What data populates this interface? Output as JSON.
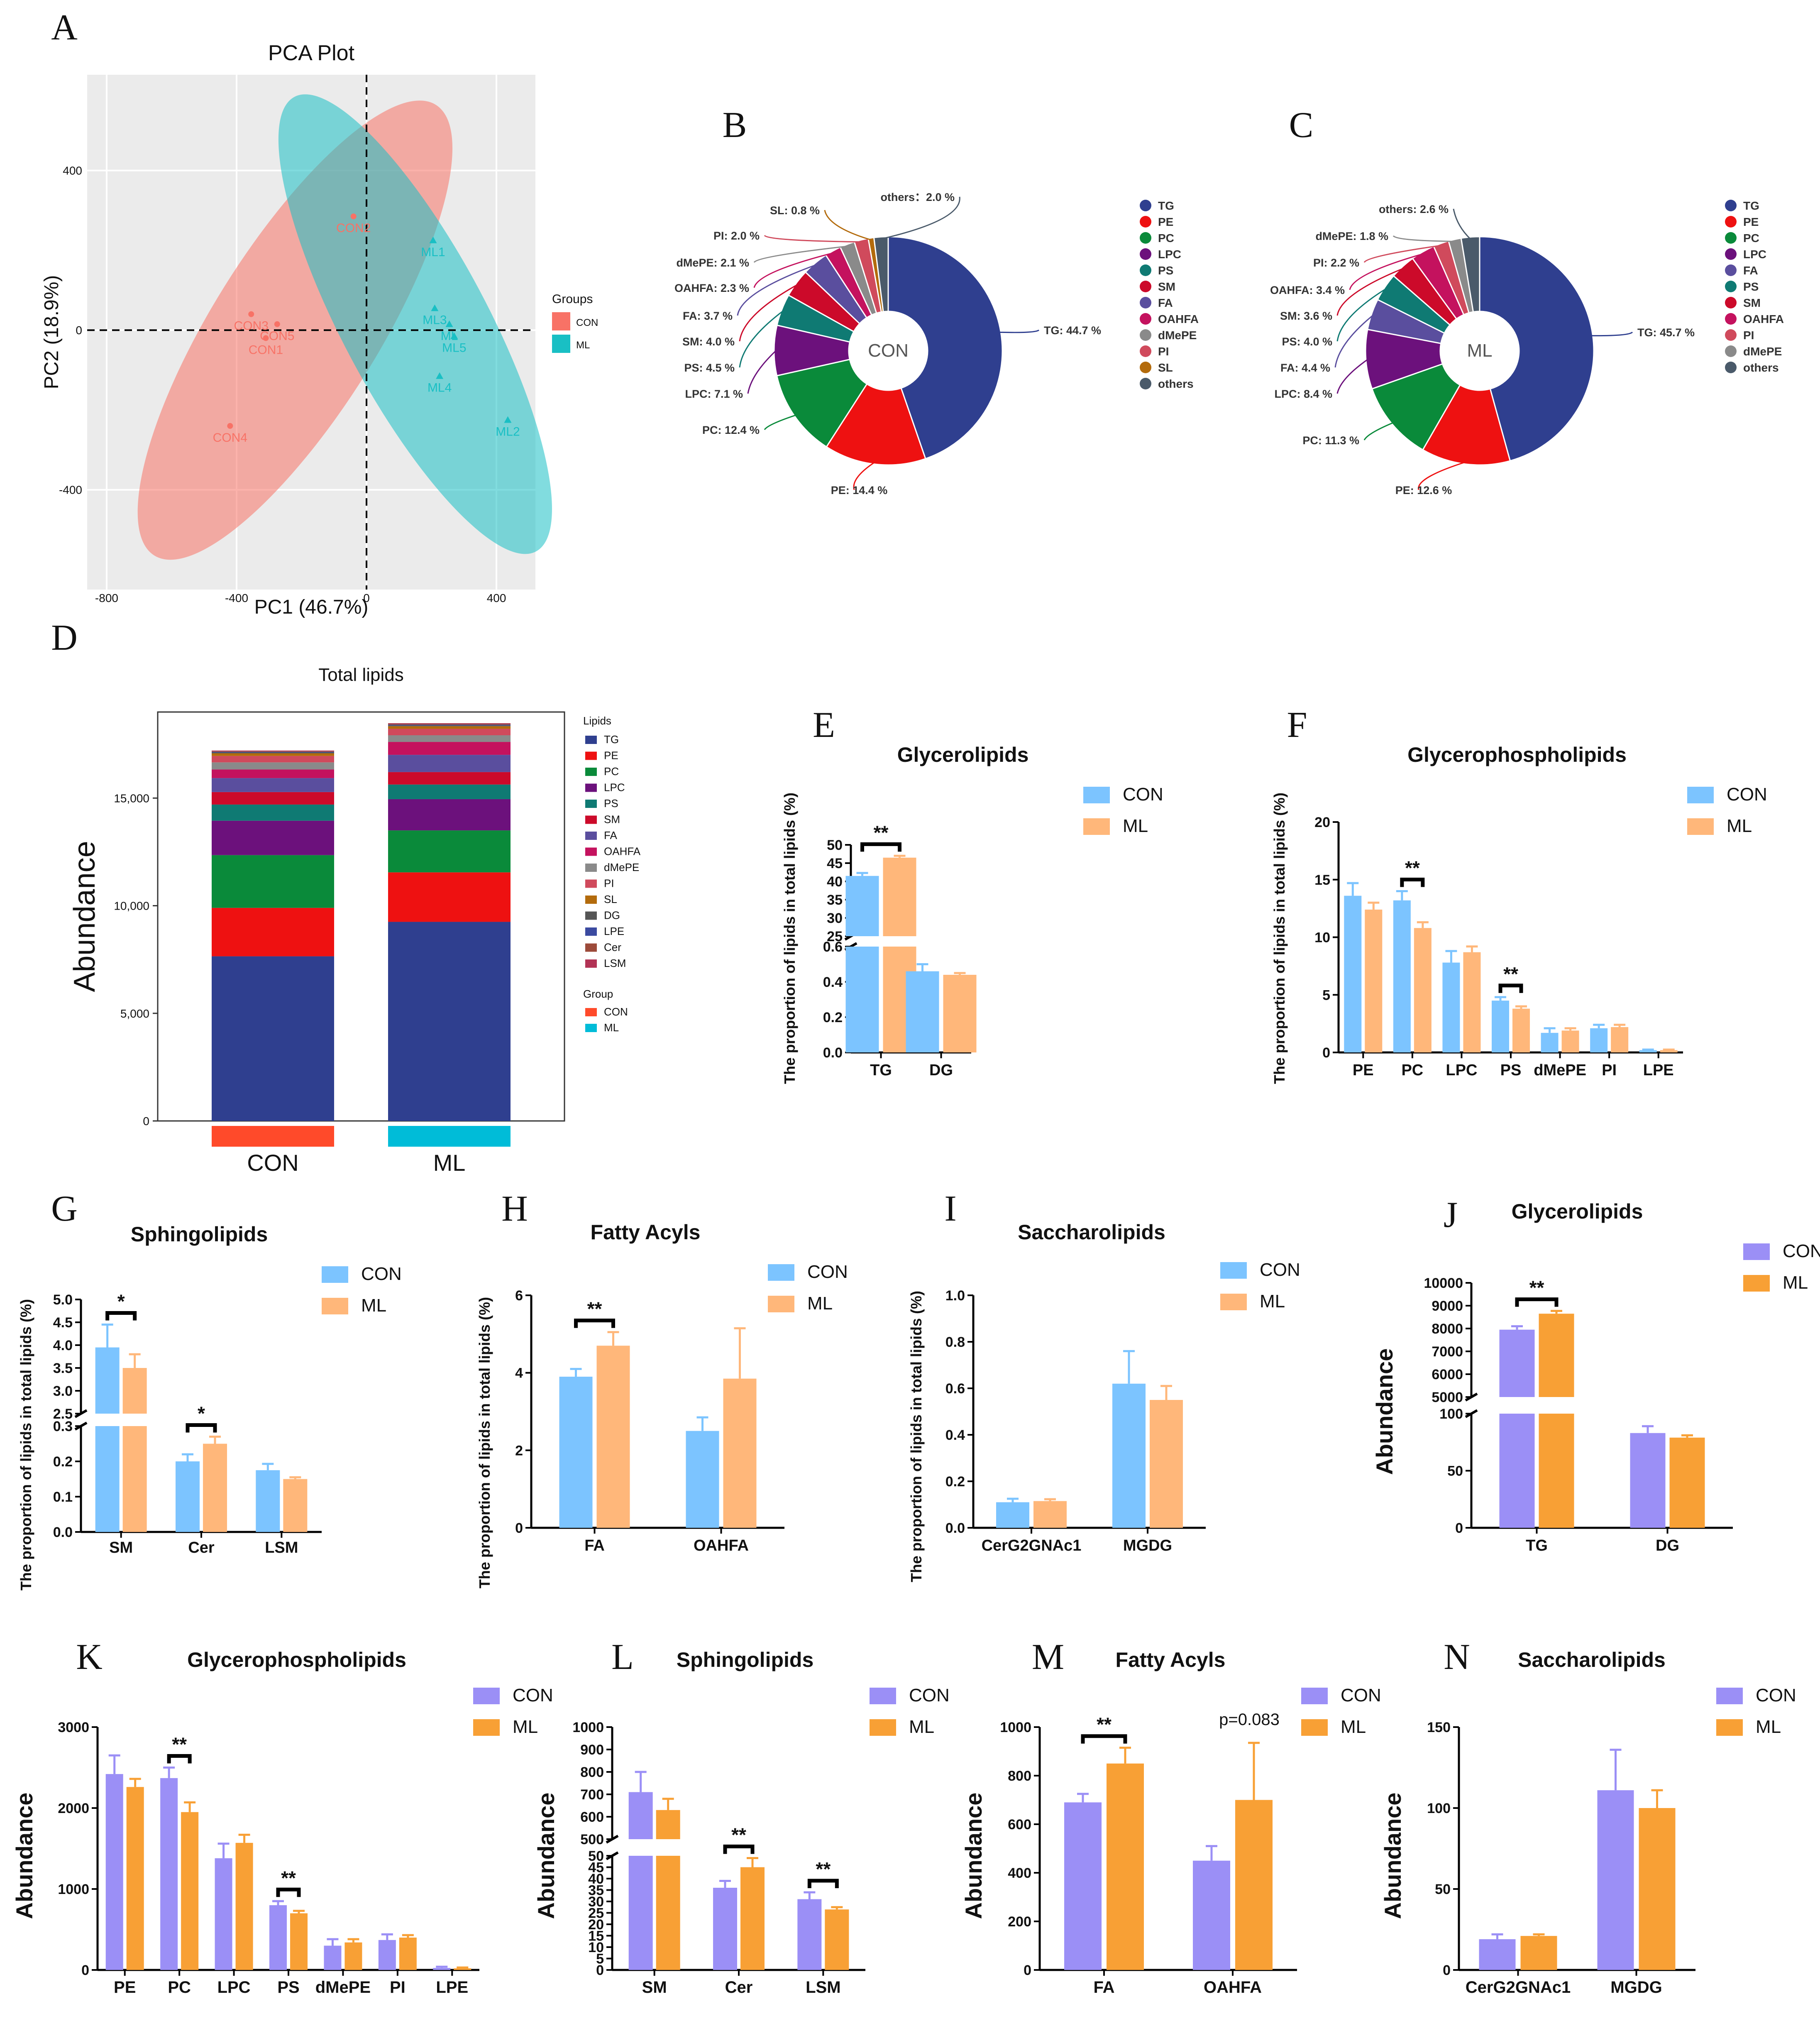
{
  "panel_letters": [
    "A",
    "B",
    "C",
    "D",
    "E",
    "F",
    "G",
    "H",
    "I",
    "J",
    "K",
    "L",
    "M",
    "N"
  ],
  "colors": {
    "con_lightbar": "#7cc4ff",
    "ml_lightbar": "#ffb77a",
    "con_abund": "#9b8ff6",
    "ml_abund": "#f8a035",
    "pca_con": "#f87266",
    "pca_ml": "#19bfc4",
    "TG": "#2f3f8f",
    "PE": "#ee1111",
    "PC": "#0a8a3a",
    "LPC": "#6c117c",
    "PS": "#0f7a73",
    "SM": "#cc0a2a",
    "FA": "#5a4e9e",
    "OAHFA": "#c4125e",
    "dMePE": "#8a8a8a",
    "PI": "#d04a5c",
    "SL": "#b36b0c",
    "DG": "#555555",
    "LPE": "#3b4aa0",
    "Cer": "#9c4a3a",
    "LSM": "#b23355",
    "others": "#4a5a6a"
  },
  "chart_data": [
    {
      "id": "A",
      "type": "scatter",
      "title": "PCA Plot",
      "xlabel": "PC1 (46.7%)",
      "ylabel": "PC2 (18.9%)",
      "xlim": [
        -860,
        520
      ],
      "ylim": [
        -650,
        640
      ],
      "xticks": [
        "-800",
        "-400",
        "0",
        "400"
      ],
      "yticks": [
        "400",
        "0",
        "-400"
      ],
      "legend_title": "Groups",
      "legend": [
        "CON",
        "ML"
      ],
      "points": [
        {
          "label": "CON1",
          "group": "CON",
          "x": -310,
          "y": -20
        },
        {
          "label": "CON2",
          "group": "CON",
          "x": -40,
          "y": 285
        },
        {
          "label": "CON3",
          "group": "CON",
          "x": -355,
          "y": 40
        },
        {
          "label": "CON4",
          "group": "CON",
          "x": -420,
          "y": -240
        },
        {
          "label": "CON5",
          "group": "CON",
          "x": -275,
          "y": 15
        },
        {
          "label": "ML1",
          "group": "ML",
          "x": 205,
          "y": 225
        },
        {
          "label": "ML2",
          "group": "ML",
          "x": 435,
          "y": -225
        },
        {
          "label": "ML3",
          "group": "ML",
          "x": 210,
          "y": 55
        },
        {
          "label": "ML4",
          "group": "ML",
          "x": 225,
          "y": -115
        },
        {
          "label": "ML5",
          "group": "ML",
          "x": 270,
          "y": -15
        },
        {
          "label": "ML",
          "group": "ML",
          "x": 255,
          "y": 15
        }
      ]
    },
    {
      "id": "B",
      "type": "pie",
      "center_label": "CON",
      "legend_title": "",
      "slices": [
        {
          "name": "TG",
          "value": 44.7,
          "label": "TG: 44.7 %"
        },
        {
          "name": "PE",
          "value": 14.4,
          "label": "PE: 14.4 %"
        },
        {
          "name": "PC",
          "value": 12.4,
          "label": "PC: 12.4 %"
        },
        {
          "name": "LPC",
          "value": 7.1,
          "label": "LPC: 7.1 %"
        },
        {
          "name": "PS",
          "value": 4.5,
          "label": "PS: 4.5 %"
        },
        {
          "name": "SM",
          "value": 4.0,
          "label": "SM: 4.0 %"
        },
        {
          "name": "FA",
          "value": 3.7,
          "label": "FA: 3.7 %"
        },
        {
          "name": "OAHFA",
          "value": 2.3,
          "label": "OAHFA: 2.3 %"
        },
        {
          "name": "dMePE",
          "value": 2.1,
          "label": "dMePE: 2.1 %"
        },
        {
          "name": "PI",
          "value": 2.0,
          "label": "PI: 2.0 %"
        },
        {
          "name": "SL",
          "value": 0.8,
          "label": "SL: 0.8 %"
        },
        {
          "name": "others",
          "value": 2.0,
          "label": "others：2.0 %"
        }
      ]
    },
    {
      "id": "C",
      "type": "pie",
      "center_label": "ML",
      "slices": [
        {
          "name": "TG",
          "value": 45.7,
          "label": "TG: 45.7 %"
        },
        {
          "name": "PE",
          "value": 12.6,
          "label": "PE: 12.6 %"
        },
        {
          "name": "PC",
          "value": 11.3,
          "label": "PC: 11.3 %"
        },
        {
          "name": "LPC",
          "value": 8.4,
          "label": "LPC: 8.4 %"
        },
        {
          "name": "FA",
          "value": 4.4,
          "label": "FA: 4.4 %"
        },
        {
          "name": "PS",
          "value": 4.0,
          "label": "PS: 4.0 %"
        },
        {
          "name": "SM",
          "value": 3.6,
          "label": "SM: 3.6 %"
        },
        {
          "name": "OAHFA",
          "value": 3.4,
          "label": "OAHFA: 3.4 %"
        },
        {
          "name": "PI",
          "value": 2.2,
          "label": "PI: 2.2 %"
        },
        {
          "name": "dMePE",
          "value": 1.8,
          "label": "dMePE: 1.8 %"
        },
        {
          "name": "others",
          "value": 2.6,
          "label": "others: 2.6 %"
        }
      ]
    },
    {
      "id": "D",
      "type": "bar",
      "stacked": true,
      "title": "Total lipids",
      "ylabel": "Abundance",
      "ylim": [
        0,
        19000
      ],
      "yticks": [
        "0",
        "5,000",
        "10,000",
        "15,000"
      ],
      "categories": [
        "CON",
        "ML"
      ],
      "legend_title": "Lipids",
      "group_legend_title": "Group",
      "group_legend": [
        "CON",
        "ML"
      ],
      "series": [
        {
          "name": "TG",
          "values": [
            7650,
            9250
          ]
        },
        {
          "name": "PE",
          "values": [
            2250,
            2300
          ]
        },
        {
          "name": "PC",
          "values": [
            2450,
            1950
          ]
        },
        {
          "name": "LPC",
          "values": [
            1600,
            1450
          ]
        },
        {
          "name": "PS",
          "values": [
            750,
            680
          ]
        },
        {
          "name": "SM",
          "values": [
            580,
            580
          ]
        },
        {
          "name": "FA",
          "values": [
            650,
            800
          ]
        },
        {
          "name": "OAHFA",
          "values": [
            400,
            600
          ]
        },
        {
          "name": "dMePE",
          "values": [
            330,
            310
          ]
        },
        {
          "name": "PI",
          "values": [
            300,
            300
          ]
        },
        {
          "name": "SL",
          "values": [
            120,
            120
          ]
        },
        {
          "name": "DG",
          "values": [
            40,
            40
          ]
        },
        {
          "name": "LPE",
          "values": [
            30,
            30
          ]
        },
        {
          "name": "Cer",
          "values": [
            30,
            40
          ]
        },
        {
          "name": "LSM",
          "values": [
            30,
            30
          ]
        }
      ]
    },
    {
      "id": "E",
      "type": "bar",
      "title": "Glycerolipids",
      "ylabel": "The proportion of lipids in total lipids (%)",
      "categories": [
        "TG",
        "DG"
      ],
      "legend": [
        "CON",
        "ML"
      ],
      "series": [
        {
          "name": "CON",
          "values": [
            41.5,
            0.46
          ],
          "errors": [
            0.8,
            0.04
          ]
        },
        {
          "name": "ML",
          "values": [
            46.5,
            0.44
          ],
          "errors": [
            0.5,
            0.01
          ]
        }
      ],
      "broken_axis": {
        "lower": [
          0,
          0.6
        ],
        "upper": [
          25,
          50
        ]
      },
      "yticks_lower": [
        "0.0",
        "0.2",
        "0.4",
        "0.6"
      ],
      "yticks_upper": [
        "25",
        "30",
        "35",
        "40",
        "45",
        "50"
      ],
      "annotations": [
        {
          "text": "**",
          "category": "TG"
        }
      ]
    },
    {
      "id": "F",
      "type": "bar",
      "title": "Glycerophospholipids",
      "ylabel": "The proportion of lipids in total lipids (%)",
      "categories": [
        "PE",
        "PC",
        "LPC",
        "PS",
        "dMePE",
        "PI",
        "LPE"
      ],
      "legend": [
        "CON",
        "ML"
      ],
      "ylim": [
        0,
        20
      ],
      "yticks": [
        "0",
        "5",
        "10",
        "15",
        "20"
      ],
      "series": [
        {
          "name": "CON",
          "values": [
            13.6,
            13.2,
            7.8,
            4.5,
            1.7,
            2.1,
            0.2
          ],
          "errors": [
            1.1,
            0.8,
            1.0,
            0.3,
            0.4,
            0.3,
            0.05
          ]
        },
        {
          "name": "ML",
          "values": [
            12.4,
            10.8,
            8.7,
            3.8,
            1.9,
            2.2,
            0.2
          ],
          "errors": [
            0.6,
            0.5,
            0.5,
            0.2,
            0.2,
            0.2,
            0.05
          ]
        }
      ],
      "annotations": [
        {
          "text": "**",
          "category": "PC"
        },
        {
          "text": "**",
          "category": "PS"
        }
      ]
    },
    {
      "id": "G",
      "type": "bar",
      "title": "Sphingolipids",
      "ylabel": "The proportion of lipids in total lipids (%)",
      "categories": [
        "SM",
        "Cer",
        "LSM"
      ],
      "legend": [
        "CON",
        "ML"
      ],
      "series": [
        {
          "name": "CON",
          "values": [
            3.95,
            0.2,
            0.175
          ],
          "errors": [
            0.5,
            0.02,
            0.018
          ]
        },
        {
          "name": "ML",
          "values": [
            3.5,
            0.25,
            0.15
          ],
          "errors": [
            0.3,
            0.02,
            0.005
          ]
        }
      ],
      "broken_axis": {
        "lower": [
          0,
          0.3
        ],
        "upper": [
          2.5,
          5.0
        ]
      },
      "yticks_lower": [
        "0.0",
        "0.1",
        "0.2",
        "0.3"
      ],
      "yticks_upper": [
        "2.5",
        "3.0",
        "3.5",
        "4.0",
        "4.5",
        "5.0"
      ],
      "annotations": [
        {
          "text": "*",
          "category": "SM"
        },
        {
          "text": "*",
          "category": "Cer"
        }
      ]
    },
    {
      "id": "H",
      "type": "bar",
      "title": "Fatty Acyls",
      "ylabel": "The proportion of lipids in total lipids (%)",
      "categories": [
        "FA",
        "OAHFA"
      ],
      "legend": [
        "CON",
        "ML"
      ],
      "ylim": [
        0,
        6
      ],
      "yticks": [
        "0",
        "2",
        "4",
        "6"
      ],
      "series": [
        {
          "name": "CON",
          "values": [
            3.9,
            2.5
          ],
          "errors": [
            0.2,
            0.35
          ]
        },
        {
          "name": "ML",
          "values": [
            4.7,
            3.85
          ],
          "errors": [
            0.35,
            1.3
          ]
        }
      ],
      "annotations": [
        {
          "text": "**",
          "category": "FA"
        }
      ]
    },
    {
      "id": "I",
      "type": "bar",
      "title": "Saccharolipids",
      "ylabel": "The proportion of lipids in total lipids (%)",
      "categories": [
        "CerG2GNAc1",
        "MGDG"
      ],
      "legend": [
        "CON",
        "ML"
      ],
      "ylim": [
        0,
        1.0
      ],
      "yticks": [
        "0.0",
        "0.2",
        "0.4",
        "0.6",
        "0.8",
        "1.0"
      ],
      "series": [
        {
          "name": "CON",
          "values": [
            0.11,
            0.62
          ],
          "errors": [
            0.015,
            0.14
          ]
        },
        {
          "name": "ML",
          "values": [
            0.115,
            0.55
          ],
          "errors": [
            0.008,
            0.06
          ]
        }
      ]
    },
    {
      "id": "J",
      "type": "bar",
      "title": "Glycerolipids",
      "ylabel": "Abundance",
      "categories": [
        "TG",
        "DG"
      ],
      "legend": [
        "CON",
        "ML"
      ],
      "series": [
        {
          "name": "CON",
          "values": [
            7950,
            83
          ],
          "errors": [
            150,
            6
          ]
        },
        {
          "name": "ML",
          "values": [
            8650,
            79
          ],
          "errors": [
            120,
            2
          ]
        }
      ],
      "broken_axis": {
        "lower": [
          0,
          100
        ],
        "upper": [
          5000,
          10000
        ]
      },
      "yticks_lower": [
        "0",
        "50",
        "100"
      ],
      "yticks_upper": [
        "5000",
        "6000",
        "7000",
        "8000",
        "9000",
        "10000"
      ],
      "annotations": [
        {
          "text": "**",
          "category": "TG"
        }
      ]
    },
    {
      "id": "K",
      "type": "bar",
      "title": "Glycerophospholipids",
      "ylabel": "Abundance",
      "categories": [
        "PE",
        "PC",
        "LPC",
        "PS",
        "dMePE",
        "PI",
        "LPE"
      ],
      "legend": [
        "CON",
        "ML"
      ],
      "ylim": [
        0,
        3000
      ],
      "yticks": [
        "0",
        "1000",
        "2000",
        "3000"
      ],
      "series": [
        {
          "name": "CON",
          "values": [
            2420,
            2370,
            1380,
            800,
            300,
            370,
            25
          ],
          "errors": [
            230,
            130,
            180,
            50,
            80,
            70,
            15
          ]
        },
        {
          "name": "ML",
          "values": [
            2260,
            1950,
            1570,
            700,
            340,
            400,
            20
          ],
          "errors": [
            100,
            120,
            100,
            30,
            40,
            30,
            10
          ]
        }
      ],
      "annotations": [
        {
          "text": "**",
          "category": "PC"
        },
        {
          "text": "**",
          "category": "PS"
        }
      ]
    },
    {
      "id": "L",
      "type": "bar",
      "title": "Sphingolipids",
      "ylabel": "Abundance",
      "categories": [
        "SM",
        "Cer",
        "LSM"
      ],
      "legend": [
        "CON",
        "ML"
      ],
      "series": [
        {
          "name": "CON",
          "values": [
            710,
            36,
            31
          ],
          "errors": [
            90,
            3,
            3
          ]
        },
        {
          "name": "ML",
          "values": [
            630,
            45,
            26.5
          ],
          "errors": [
            50,
            4,
            1
          ]
        }
      ],
      "broken_axis": {
        "lower": [
          0,
          50
        ],
        "upper": [
          500,
          1000
        ]
      },
      "yticks_lower": [
        "0",
        "5",
        "10",
        "15",
        "20",
        "25",
        "30",
        "35",
        "40",
        "45",
        "50"
      ],
      "yticks_upper": [
        "500",
        "600",
        "700",
        "800",
        "900",
        "1000"
      ],
      "annotations": [
        {
          "text": "**",
          "category": "Cer"
        },
        {
          "text": "**",
          "category": "LSM"
        }
      ]
    },
    {
      "id": "M",
      "type": "bar",
      "title": "Fatty Acyls",
      "ylabel": "Abundance",
      "categories": [
        "FA",
        "OAHFA"
      ],
      "legend": [
        "CON",
        "ML"
      ],
      "ylim": [
        0,
        1000
      ],
      "yticks": [
        "0",
        "200",
        "400",
        "600",
        "800",
        "1000"
      ],
      "series": [
        {
          "name": "CON",
          "values": [
            690,
            450
          ],
          "errors": [
            35,
            60
          ]
        },
        {
          "name": "ML",
          "values": [
            850,
            700
          ],
          "errors": [
            65,
            235
          ]
        }
      ],
      "annotations": [
        {
          "text": "**",
          "category": "FA"
        },
        {
          "text": "p=0.083",
          "category": "OAHFA"
        }
      ]
    },
    {
      "id": "N",
      "type": "bar",
      "title": "Saccharolipids",
      "ylabel": "Abundance",
      "categories": [
        "CerG2GNAc1",
        "MGDG"
      ],
      "legend": [
        "CON",
        "ML"
      ],
      "ylim": [
        0,
        150
      ],
      "yticks": [
        "0",
        "50",
        "100",
        "150"
      ],
      "series": [
        {
          "name": "CON",
          "values": [
            19,
            111
          ],
          "errors": [
            3,
            25
          ]
        },
        {
          "name": "ML",
          "values": [
            21,
            100
          ],
          "errors": [
            1,
            11
          ]
        }
      ]
    }
  ]
}
